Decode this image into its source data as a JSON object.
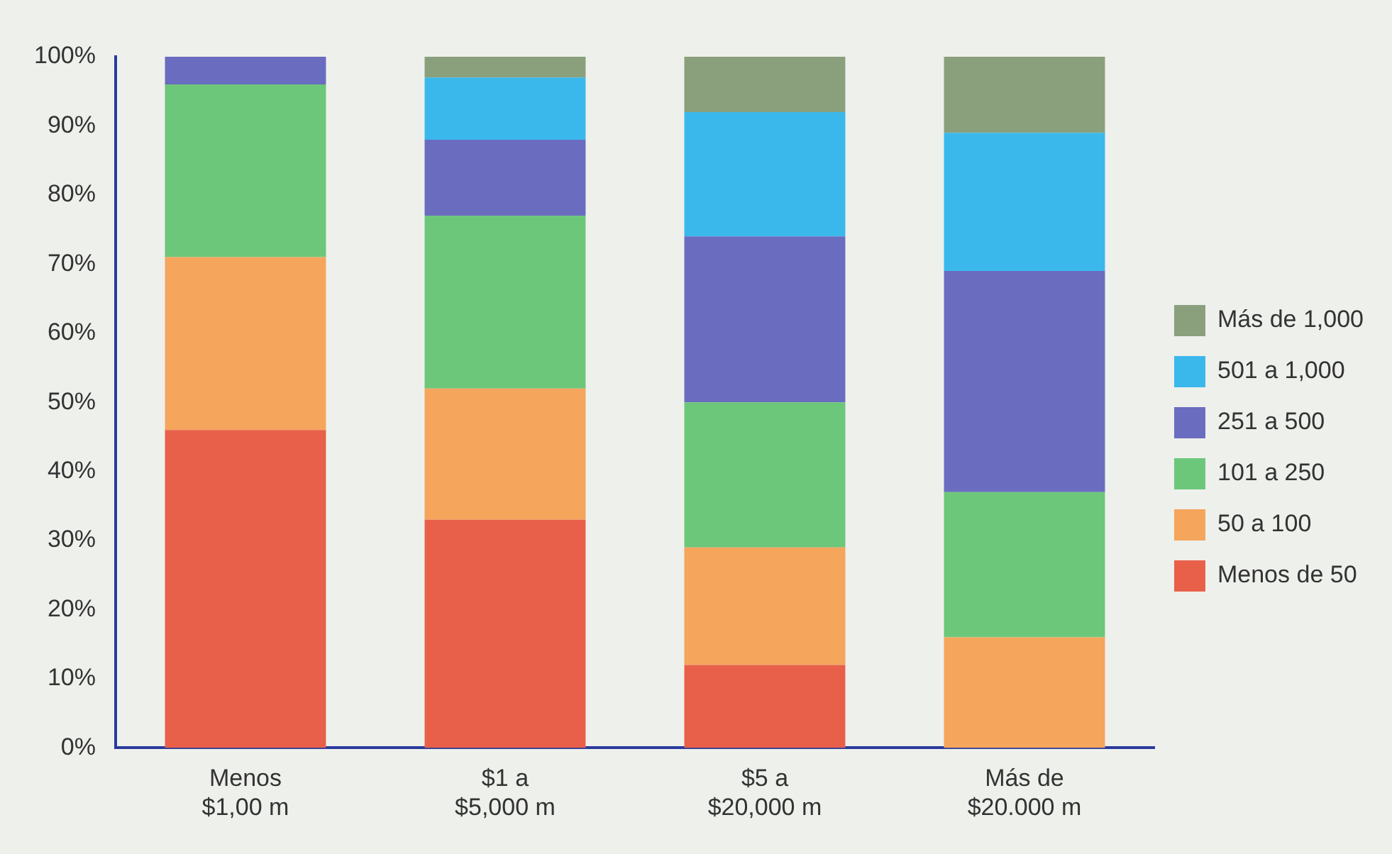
{
  "chart_data": {
    "type": "bar",
    "stacked": true,
    "categories": [
      "Menos\n$1,00 m",
      "$1 a\n$5,000 m",
      "$5 a\n$20,000 m",
      "Más de\n$20.000 m"
    ],
    "series": [
      {
        "name": "Menos de 50",
        "color": "#e8604a",
        "values": [
          46,
          33,
          12,
          0
        ]
      },
      {
        "name": "50 a 100",
        "color": "#f5a55c",
        "values": [
          25,
          19,
          17,
          16
        ]
      },
      {
        "name": "101 a 250",
        "color": "#6cc77a",
        "values": [
          25,
          25,
          21,
          21
        ]
      },
      {
        "name": "251 a 500",
        "color": "#6a6cc0",
        "values": [
          4,
          11,
          24,
          32
        ]
      },
      {
        "name": "501 a 1,000",
        "color": "#3ab8ec",
        "values": [
          0,
          9,
          18,
          20
        ]
      },
      {
        "name": "Más de 1,000",
        "color": "#8aa07c",
        "values": [
          0,
          3,
          8,
          11
        ]
      }
    ],
    "ylim": [
      0,
      100
    ],
    "yticks": [
      {
        "value": 0,
        "label": "0%"
      },
      {
        "value": 10,
        "label": "10%"
      },
      {
        "value": 20,
        "label": "20%"
      },
      {
        "value": 30,
        "label": "30%"
      },
      {
        "value": 40,
        "label": "40%"
      },
      {
        "value": 50,
        "label": "50%"
      },
      {
        "value": 60,
        "label": "60%"
      },
      {
        "value": 70,
        "label": "70%"
      },
      {
        "value": 80,
        "label": "80%"
      },
      {
        "value": 90,
        "label": "90%"
      },
      {
        "value": 100,
        "label": "100%"
      }
    ],
    "grid": false,
    "legend": "right"
  }
}
